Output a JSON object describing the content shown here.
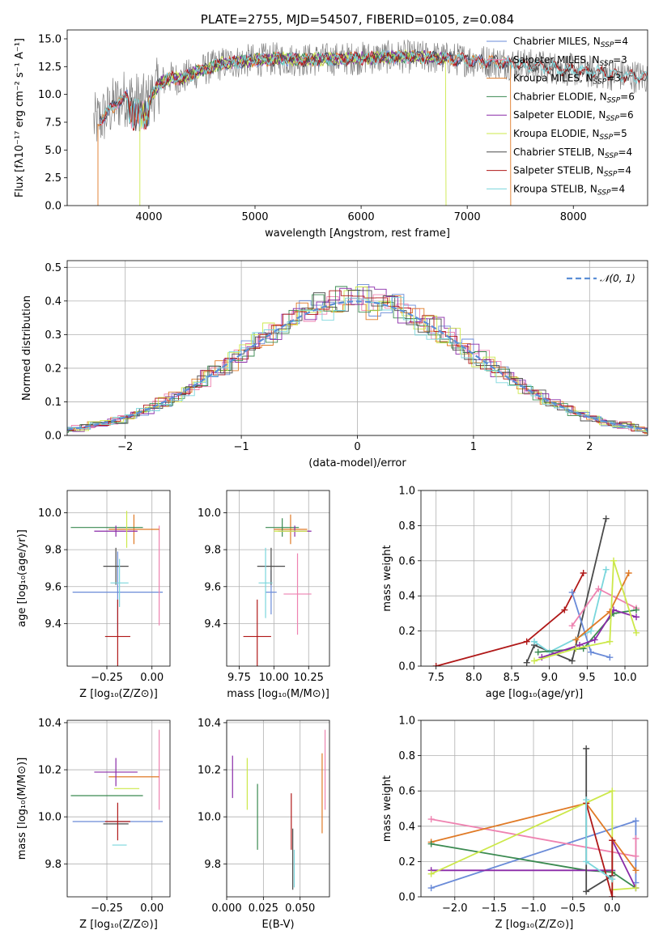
{
  "colors": {
    "chabrier_miles": "#6a8bd8",
    "salpeter_miles": "#ee82b0",
    "kroupa_miles": "#e07a26",
    "chabrier_elodie": "#3a8a50",
    "salpeter_elodie": "#8a2aa8",
    "kroupa_elodie": "#cce84a",
    "chabrier_stelib": "#4a4a4a",
    "salpeter_stelib": "#b01818",
    "kroupa_stelib": "#7ad6dc",
    "normal": "#5b8ed6"
  },
  "chart_data": [
    {
      "id": "spectrum",
      "type": "line",
      "title": "PLATE=2755, MJD=54507, FIBERID=0105, z=0.084",
      "xlabel": "wavelength [Angstrom, rest frame]",
      "ylabel": "Flux [fλ10⁻¹⁷ erg cm⁻² s⁻¹ A⁻¹]",
      "xlim": [
        3230,
        8700
      ],
      "ylim": [
        0,
        15.8
      ],
      "xticks": [
        4000,
        5000,
        6000,
        7000,
        8000
      ],
      "xticklabels": [
        "4000",
        "5000",
        "6000",
        "7000",
        "8000"
      ],
      "yticks": [
        0,
        2.5,
        5,
        7.5,
        10,
        12.5,
        15
      ],
      "yticklabels": [
        "0.0",
        "2.5",
        "5.0",
        "7.5",
        "10.0",
        "12.5",
        "15.0"
      ],
      "legend": [
        {
          "key": "chabrier_miles",
          "label": "Chabrier MILES, N",
          "sub": "SSP",
          "suffix": "=4"
        },
        {
          "key": "salpeter_miles",
          "label": "Salpeter MILES, N",
          "sub": "SSP",
          "suffix": "=3"
        },
        {
          "key": "kroupa_miles",
          "label": "Kroupa MILES, N",
          "sub": "SSP",
          "suffix": "=3"
        },
        {
          "key": "chabrier_elodie",
          "label": "Chabrier ELODIE, N",
          "sub": "SSP",
          "suffix": "=6"
        },
        {
          "key": "salpeter_elodie",
          "label": "Salpeter ELODIE, N",
          "sub": "SSP",
          "suffix": "=6"
        },
        {
          "key": "kroupa_elodie",
          "label": "Kroupa ELODIE, N",
          "sub": "SSP",
          "suffix": "=5"
        },
        {
          "key": "chabrier_stelib",
          "label": "Chabrier STELIB, N",
          "sub": "SSP",
          "suffix": "=4"
        },
        {
          "key": "salpeter_stelib",
          "label": "Salpeter STELIB, N",
          "sub": "SSP",
          "suffix": "=4"
        },
        {
          "key": "kroupa_stelib",
          "label": "Kroupa STELIB, N",
          "sub": "SSP",
          "suffix": "=4"
        }
      ],
      "continuum": {
        "x": [
          3500,
          3550,
          3650,
          3700,
          3800,
          3850,
          3950,
          4000,
          4100,
          4200,
          4300,
          4500,
          4700,
          4900,
          5200,
          5500,
          5800,
          6100,
          6400,
          6700,
          7000,
          7300,
          7600,
          8000,
          8400,
          8700
        ],
        "y": [
          7.5,
          7.8,
          8.8,
          9.3,
          9.8,
          9.5,
          9.2,
          9.4,
          11.0,
          11.5,
          11.4,
          12.2,
          12.8,
          13.0,
          13.2,
          13.1,
          13.2,
          13.3,
          13.4,
          13.3,
          13.1,
          12.9,
          12.6,
          12.2,
          11.8,
          11.5
        ]
      },
      "data_noise_amp": 1.7,
      "edges": [
        {
          "key": "kroupa_miles",
          "x": [
            3520,
            7410
          ],
          "label_x_note": "model edges drop to zero"
        },
        {
          "key": "kroupa_elodie",
          "x": [
            3915,
            6800
          ]
        }
      ]
    },
    {
      "id": "residual-hist",
      "type": "histogram",
      "xlabel": "(data-model)/error",
      "ylabel": "Normed distribution",
      "xlim": [
        -2.5,
        2.5
      ],
      "ylim": [
        0,
        0.52
      ],
      "xticks": [
        -2,
        -1,
        0,
        1,
        2
      ],
      "xticklabels": [
        "−2",
        "−1",
        "0",
        "1",
        "2"
      ],
      "yticks": [
        0,
        0.1,
        0.2,
        0.3,
        0.4,
        0.5
      ],
      "yticklabels": [
        "0.0",
        "0.1",
        "0.2",
        "0.3",
        "0.4",
        "0.5"
      ],
      "bin_width": 0.1,
      "legend": [
        {
          "key": "normal",
          "label": "𝒩(0, 1)"
        }
      ],
      "series_jitter_note": "nine stepped histograms around the standard normal curve"
    },
    {
      "id": "age-vs-Z",
      "type": "errorbar",
      "xlabel": "Z [log₁₀(Z/Z⊙)]",
      "ylabel": "age  [log₁₀(age/yr)]",
      "xlim": [
        -0.47,
        0.1
      ],
      "ylim": [
        9.17,
        10.12
      ],
      "xticks": [
        -0.25,
        0
      ],
      "xticklabels": [
        "−0.25",
        "0.00"
      ],
      "yticks": [
        9.4,
        9.6,
        9.8,
        10.0
      ],
      "yticklabels": [
        "9.4",
        "9.6",
        "9.8",
        "10.0"
      ],
      "points": [
        {
          "key": "chabrier_miles",
          "x": -0.19,
          "xerr": 0.25,
          "y": 9.57,
          "yerr": 0.22
        },
        {
          "key": "salpeter_miles",
          "x": 0.04,
          "xerr": 0.0,
          "y": 9.66,
          "yerr": 0.27
        },
        {
          "key": "kroupa_miles",
          "x": -0.1,
          "xerr": 0.14,
          "y": 9.91,
          "yerr": 0.08
        },
        {
          "key": "chabrier_elodie",
          "x": -0.25,
          "xerr": 0.2,
          "y": 9.92,
          "yerr": 0.0
        },
        {
          "key": "salpeter_elodie",
          "x": -0.2,
          "xerr": 0.12,
          "y": 9.9,
          "yerr": 0.03
        },
        {
          "key": "kroupa_elodie",
          "x": -0.14,
          "xerr": 0.0,
          "y": 9.91,
          "yerr": 0.1
        },
        {
          "key": "chabrier_stelib",
          "x": -0.2,
          "xerr": 0.07,
          "y": 9.71,
          "yerr": 0.1
        },
        {
          "key": "salpeter_stelib",
          "x": -0.19,
          "xerr": 0.07,
          "y": 9.33,
          "yerr": 0.2
        },
        {
          "key": "kroupa_stelib",
          "x": -0.18,
          "xerr": 0.05,
          "y": 9.62,
          "yerr": 0.13
        }
      ]
    },
    {
      "id": "age-vs-mass",
      "type": "errorbar",
      "xlabel": "mass [log₁₀(M/M⊙)]",
      "ylabel": "",
      "xlim": [
        9.66,
        10.4
      ],
      "ylim": [
        9.17,
        10.12
      ],
      "xticks": [
        9.75,
        10.0,
        10.25
      ],
      "xticklabels": [
        "9.75",
        "10.00",
        "10.25"
      ],
      "yticks": [
        9.4,
        9.6,
        9.8,
        10.0
      ],
      "yticklabels": [
        "9.4",
        "9.6",
        "9.8",
        "10.0"
      ],
      "points": [
        {
          "key": "chabrier_miles",
          "x": 9.98,
          "xerr": 0.04,
          "y": 9.57,
          "yerr": 0.12
        },
        {
          "key": "salpeter_miles",
          "x": 10.17,
          "xerr": 0.1,
          "y": 9.56,
          "yerr": 0.22
        },
        {
          "key": "kroupa_miles",
          "x": 10.12,
          "xerr": 0.12,
          "y": 9.91,
          "yerr": 0.08
        },
        {
          "key": "chabrier_elodie",
          "x": 10.06,
          "xerr": 0.12,
          "y": 9.92,
          "yerr": 0.05
        },
        {
          "key": "salpeter_elodie",
          "x": 10.15,
          "xerr": 0.12,
          "y": 9.9,
          "yerr": 0.03
        },
        {
          "key": "kroupa_elodie",
          "x": 10.12,
          "xerr": 0.12,
          "y": 9.9,
          "yerr": 0.0
        },
        {
          "key": "chabrier_stelib",
          "x": 9.98,
          "xerr": 0.1,
          "y": 9.71,
          "yerr": 0.1
        },
        {
          "key": "salpeter_stelib",
          "x": 9.88,
          "xerr": 0.1,
          "y": 9.33,
          "yerr": 0.2
        },
        {
          "key": "kroupa_stelib",
          "x": 9.94,
          "xerr": 0.05,
          "y": 9.62,
          "yerr": 0.19
        }
      ]
    },
    {
      "id": "massweight-vs-age",
      "type": "line",
      "xlabel": "age  [log₁₀(age/yr)]",
      "ylabel": "mass weight",
      "xlim": [
        7.3,
        10.3
      ],
      "ylim": [
        0,
        1.0
      ],
      "xticks": [
        7.5,
        8.0,
        8.5,
        9.0,
        9.5,
        10.0
      ],
      "xticklabels": [
        "7.5",
        "8.0",
        "8.5",
        "9.0",
        "9.5",
        "10.0"
      ],
      "yticks": [
        0,
        0.2,
        0.4,
        0.6,
        0.8,
        1.0
      ],
      "yticklabels": [
        "0.0",
        "0.2",
        "0.4",
        "0.6",
        "0.8",
        "1.0"
      ],
      "series": [
        {
          "key": "salpeter_stelib",
          "x": [
            7.5,
            8.7,
            9.2,
            9.45
          ],
          "y": [
            0.0,
            0.14,
            0.32,
            0.53
          ]
        },
        {
          "key": "chabrier_stelib",
          "x": [
            8.7,
            8.8,
            9.3,
            9.75
          ],
          "y": [
            0.02,
            0.12,
            0.03,
            0.84
          ]
        },
        {
          "key": "kroupa_stelib",
          "x": [
            8.8,
            9.0,
            9.55,
            9.75
          ],
          "y": [
            0.14,
            0.08,
            0.2,
            0.55
          ]
        },
        {
          "key": "chabrier_miles",
          "x": [
            9.3,
            9.55,
            9.8
          ],
          "y": [
            0.42,
            0.08,
            0.05
          ]
        },
        {
          "key": "salpeter_miles",
          "x": [
            9.3,
            9.65,
            10.15
          ],
          "y": [
            0.23,
            0.44,
            0.33
          ]
        },
        {
          "key": "kroupa_miles",
          "x": [
            9.35,
            9.8,
            10.05
          ],
          "y": [
            0.15,
            0.31,
            0.53
          ]
        },
        {
          "key": "chabrier_elodie",
          "x": [
            8.85,
            9.45,
            9.85,
            10.15
          ],
          "y": [
            0.08,
            0.1,
            0.3,
            0.32
          ]
        },
        {
          "key": "salpeter_elodie",
          "x": [
            8.9,
            9.4,
            9.6,
            9.85,
            10.15
          ],
          "y": [
            0.05,
            0.12,
            0.15,
            0.32,
            0.28
          ]
        },
        {
          "key": "kroupa_elodie",
          "x": [
            8.8,
            9.35,
            9.8,
            9.85,
            10.15
          ],
          "y": [
            0.03,
            0.1,
            0.14,
            0.6,
            0.19
          ]
        }
      ]
    },
    {
      "id": "mass-vs-Z",
      "type": "errorbar",
      "xlabel": "Z [log₁₀(Z/Z⊙)]",
      "ylabel": "mass [log₁₀(M/M⊙)]",
      "xlim": [
        -0.47,
        0.1
      ],
      "ylim": [
        9.66,
        10.41
      ],
      "xticks": [
        -0.25,
        0
      ],
      "xticklabels": [
        "−0.25",
        "0.00"
      ],
      "yticks": [
        9.8,
        10.0,
        10.2,
        10.4
      ],
      "yticklabels": [
        "9.8",
        "10.0",
        "10.2",
        "10.4"
      ],
      "points": [
        {
          "key": "chabrier_miles",
          "x": -0.19,
          "xerr": 0.25,
          "y": 9.98,
          "yerr": 0.0
        },
        {
          "key": "salpeter_miles",
          "x": 0.04,
          "xerr": 0.0,
          "y": 10.2,
          "yerr": 0.17
        },
        {
          "key": "kroupa_miles",
          "x": -0.1,
          "xerr": 0.14,
          "y": 10.17,
          "yerr": 0.0
        },
        {
          "key": "chabrier_elodie",
          "x": -0.25,
          "xerr": 0.2,
          "y": 10.09,
          "yerr": 0.0
        },
        {
          "key": "salpeter_elodie",
          "x": -0.2,
          "xerr": 0.12,
          "y": 10.19,
          "yerr": 0.06
        },
        {
          "key": "kroupa_elodie",
          "x": -0.14,
          "xerr": 0.07,
          "y": 10.12,
          "yerr": 0.0
        },
        {
          "key": "chabrier_stelib",
          "x": -0.2,
          "xerr": 0.07,
          "y": 9.97,
          "yerr": 0.0
        },
        {
          "key": "salpeter_stelib",
          "x": -0.19,
          "xerr": 0.07,
          "y": 9.98,
          "yerr": 0.08
        },
        {
          "key": "kroupa_stelib",
          "x": -0.18,
          "xerr": 0.04,
          "y": 9.88,
          "yerr": 0.0
        }
      ]
    },
    {
      "id": "mass-vs-ebv",
      "type": "errorbar",
      "xlabel": "E(B-V)",
      "ylabel": "",
      "xlim": [
        0.0,
        0.07
      ],
      "ylim": [
        9.66,
        10.41
      ],
      "xticks": [
        0.0,
        0.025,
        0.05
      ],
      "xticklabels": [
        "0.000",
        "0.025",
        "0.050"
      ],
      "yticks": [
        9.8,
        10.0,
        10.2,
        10.4
      ],
      "yticklabels": [
        "9.8",
        "10.0",
        "10.2",
        "10.4"
      ],
      "points": [
        {
          "key": "salpeter_elodie",
          "x": 0.004,
          "xerr": 0.0,
          "y": 10.17,
          "yerr": 0.09
        },
        {
          "key": "kroupa_elodie",
          "x": 0.014,
          "xerr": 0.0,
          "y": 10.14,
          "yerr": 0.11
        },
        {
          "key": "chabrier_elodie",
          "x": 0.021,
          "xerr": 0.0,
          "y": 10.0,
          "yerr": 0.14
        },
        {
          "key": "salpeter_stelib",
          "x": 0.044,
          "xerr": 0.0,
          "y": 9.98,
          "yerr": 0.12
        },
        {
          "key": "chabrier_stelib",
          "x": 0.045,
          "xerr": 0.0,
          "y": 9.82,
          "yerr": 0.13
        },
        {
          "key": "kroupa_stelib",
          "x": 0.046,
          "xerr": 0.0,
          "y": 9.78,
          "yerr": 0.08
        },
        {
          "key": "kroupa_miles",
          "x": 0.065,
          "xerr": 0.0,
          "y": 10.1,
          "yerr": 0.17
        },
        {
          "key": "salpeter_miles",
          "x": 0.067,
          "xerr": 0.0,
          "y": 10.2,
          "yerr": 0.17
        }
      ]
    },
    {
      "id": "massweight-vs-Z",
      "type": "line",
      "xlabel": "Z [log₁₀(Z/Z⊙)]",
      "ylabel": "mass weight",
      "xlim": [
        -2.43,
        0.45
      ],
      "ylim": [
        0,
        1.0
      ],
      "xticks": [
        -2.0,
        -1.5,
        -1.0,
        -0.5,
        0.0
      ],
      "xticklabels": [
        "−2.0",
        "−1.5",
        "−1.0",
        "−0.5",
        "0.0"
      ],
      "yticks": [
        0,
        0.2,
        0.4,
        0.6,
        0.8,
        1.0
      ],
      "yticklabels": [
        "0.0",
        "0.2",
        "0.4",
        "0.6",
        "0.8",
        "1.0"
      ],
      "series": [
        {
          "key": "chabrier_miles",
          "x": [
            -2.3,
            0.3,
            0.3
          ],
          "y": [
            0.05,
            0.43,
            0.08
          ]
        },
        {
          "key": "salpeter_miles",
          "x": [
            -2.3,
            0.3,
            0.3
          ],
          "y": [
            0.44,
            0.23,
            0.33
          ]
        },
        {
          "key": "kroupa_miles",
          "x": [
            -2.3,
            -0.33,
            0.3
          ],
          "y": [
            0.31,
            0.53,
            0.15
          ]
        },
        {
          "key": "chabrier_elodie",
          "x": [
            -2.3,
            -0.33,
            0.0,
            0.3
          ],
          "y": [
            0.3,
            0.15,
            0.14,
            0.05
          ]
        },
        {
          "key": "salpeter_elodie",
          "x": [
            -2.3,
            0.0,
            0.0,
            0.3
          ],
          "y": [
            0.15,
            0.15,
            0.32,
            0.05
          ]
        },
        {
          "key": "kroupa_elodie",
          "x": [
            -2.3,
            0.0,
            0.0,
            0.3
          ],
          "y": [
            0.13,
            0.6,
            0.04,
            0.05
          ]
        },
        {
          "key": "chabrier_stelib",
          "x": [
            -0.33,
            -0.33,
            0.0
          ],
          "y": [
            0.84,
            0.03,
            0.12
          ]
        },
        {
          "key": "salpeter_stelib",
          "x": [
            -0.33,
            0.0,
            0.0
          ],
          "y": [
            0.53,
            0.0,
            0.32
          ]
        },
        {
          "key": "kroupa_stelib",
          "x": [
            -0.33,
            -0.33,
            0.0
          ],
          "y": [
            0.55,
            0.2,
            0.1
          ]
        }
      ]
    }
  ]
}
